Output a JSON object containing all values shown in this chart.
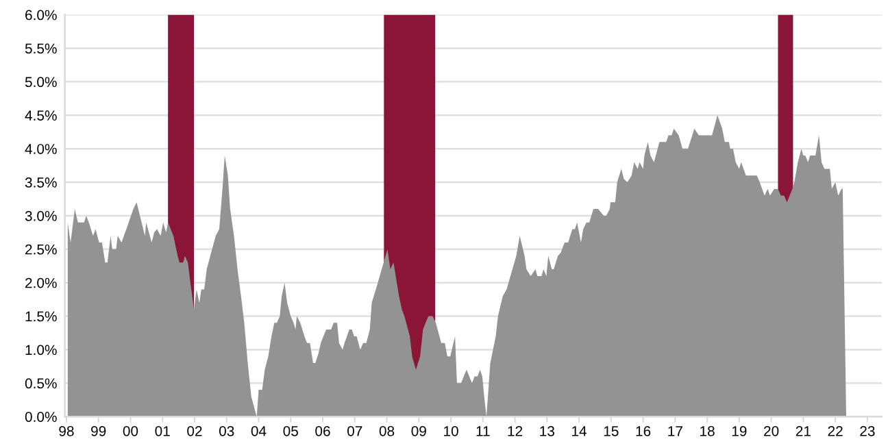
{
  "chart_data": {
    "type": "area",
    "x": [
      1998.04,
      1998.13,
      1998.26,
      1998.36,
      1998.55,
      1998.62,
      1998.7,
      1998.83,
      1998.91,
      1999.02,
      1999.11,
      1999.21,
      1999.28,
      1999.38,
      1999.43,
      1999.55,
      1999.6,
      1999.72,
      1999.87,
      2000.09,
      2000.19,
      2000.45,
      2000.49,
      2000.66,
      2000.74,
      2000.83,
      2000.94,
      2001.02,
      2001.11,
      2001.17,
      2001.34,
      2001.47,
      2001.53,
      2001.64,
      2001.7,
      2001.79,
      2001.87,
      2001.98,
      2002.06,
      2002.15,
      2002.21,
      2002.3,
      2002.38,
      2002.49,
      2002.66,
      2002.77,
      2002.87,
      2002.94,
      2003.04,
      2003.11,
      2003.23,
      2003.34,
      2003.45,
      2003.55,
      2003.66,
      2003.77,
      2003.94,
      2004.0,
      2004.11,
      2004.19,
      2004.3,
      2004.4,
      2004.49,
      2004.57,
      2004.66,
      2004.72,
      2004.81,
      2004.89,
      2005.0,
      2005.09,
      2005.15,
      2005.19,
      2005.3,
      2005.43,
      2005.51,
      2005.6,
      2005.7,
      2005.77,
      2005.87,
      2005.94,
      2006.02,
      2006.11,
      2006.26,
      2006.34,
      2006.45,
      2006.51,
      2006.62,
      2006.68,
      2006.83,
      2006.91,
      2006.98,
      2007.06,
      2007.17,
      2007.26,
      2007.36,
      2007.47,
      2007.53,
      2007.72,
      2008.02,
      2008.11,
      2008.21,
      2008.38,
      2008.47,
      2008.55,
      2008.72,
      2008.79,
      2008.91,
      2009.04,
      2009.13,
      2009.21,
      2009.3,
      2009.43,
      2009.53,
      2009.7,
      2009.81,
      2009.89,
      2009.98,
      2010.13,
      2010.19,
      2010.32,
      2010.4,
      2010.49,
      2010.66,
      2010.74,
      2010.83,
      2010.91,
      2010.98,
      2011.04,
      2011.11,
      2011.23,
      2011.4,
      2011.47,
      2011.62,
      2011.74,
      2012.04,
      2012.15,
      2012.3,
      2012.36,
      2012.49,
      2012.64,
      2012.7,
      2012.83,
      2012.89,
      2012.98,
      2013.04,
      2013.15,
      2013.21,
      2013.34,
      2013.43,
      2013.55,
      2013.66,
      2013.79,
      2013.87,
      2013.94,
      2014.06,
      2014.13,
      2014.23,
      2014.32,
      2014.45,
      2014.6,
      2014.77,
      2014.85,
      2014.96,
      2014.98,
      2015.13,
      2015.19,
      2015.32,
      2015.4,
      2015.51,
      2015.64,
      2015.72,
      2015.83,
      2015.89,
      2016.0,
      2016.04,
      2016.15,
      2016.23,
      2016.34,
      2016.51,
      2016.72,
      2016.79,
      2016.89,
      2016.96,
      2017.11,
      2017.23,
      2017.4,
      2017.6,
      2017.74,
      2018.15,
      2018.32,
      2018.47,
      2018.55,
      2018.68,
      2018.72,
      2018.81,
      2018.89,
      2019.0,
      2019.06,
      2019.21,
      2019.55,
      2019.64,
      2019.79,
      2019.89,
      2019.96,
      2020.09,
      2020.21,
      2020.3,
      2020.4,
      2020.49,
      2020.66,
      2020.72,
      2020.83,
      2020.94,
      2021.0,
      2021.06,
      2021.15,
      2021.21,
      2021.38,
      2021.49,
      2021.57,
      2021.66,
      2021.83,
      2021.89,
      2022.0,
      2022.09,
      2022.19,
      2022.23,
      2022.34
    ],
    "series": [
      {
        "color": "#939393",
        "values": [
          2.9,
          2.6,
          3.1,
          2.9,
          2.9,
          3.0,
          2.9,
          2.7,
          2.8,
          2.6,
          2.6,
          2.3,
          2.3,
          2.7,
          2.5,
          2.5,
          2.7,
          2.6,
          2.8,
          3.1,
          3.2,
          2.7,
          2.9,
          2.6,
          2.75,
          2.8,
          2.7,
          2.9,
          2.75,
          2.9,
          2.7,
          2.4,
          2.3,
          2.3,
          2.4,
          2.3,
          2.0,
          1.6,
          1.9,
          1.7,
          1.9,
          1.9,
          2.2,
          2.4,
          2.7,
          2.8,
          3.4,
          3.9,
          3.6,
          3.1,
          2.7,
          2.2,
          1.8,
          1.4,
          0.8,
          0.3,
          0.0,
          0.4,
          0.4,
          0.7,
          0.9,
          1.2,
          1.4,
          1.4,
          1.5,
          1.8,
          2.0,
          1.7,
          1.5,
          1.4,
          1.3,
          1.5,
          1.4,
          1.2,
          1.1,
          1.1,
          0.8,
          0.8,
          0.95,
          1.1,
          1.2,
          1.3,
          1.3,
          1.4,
          1.4,
          1.1,
          1.0,
          1.1,
          1.3,
          1.3,
          1.2,
          1.2,
          1.0,
          1.1,
          1.1,
          1.3,
          1.7,
          2.0,
          2.5,
          2.2,
          2.3,
          1.8,
          1.6,
          1.5,
          1.2,
          0.9,
          0.7,
          0.9,
          1.3,
          1.4,
          1.5,
          1.5,
          1.4,
          1.1,
          1.1,
          0.9,
          0.9,
          1.2,
          0.5,
          0.5,
          0.6,
          0.7,
          0.5,
          0.6,
          0.6,
          0.7,
          0.6,
          0.3,
          0.0,
          0.8,
          1.2,
          1.5,
          1.8,
          1.9,
          2.4,
          2.7,
          2.4,
          2.2,
          2.1,
          2.2,
          2.1,
          2.1,
          2.2,
          2.1,
          2.4,
          2.2,
          2.2,
          2.4,
          2.45,
          2.6,
          2.6,
          2.8,
          2.8,
          2.9,
          2.6,
          2.8,
          2.9,
          2.9,
          3.1,
          3.1,
          3.0,
          3.0,
          3.1,
          3.2,
          3.2,
          3.5,
          3.7,
          3.55,
          3.5,
          3.6,
          3.8,
          3.7,
          3.8,
          3.7,
          3.9,
          4.1,
          3.9,
          3.8,
          4.1,
          4.1,
          4.2,
          4.2,
          4.3,
          4.2,
          4.0,
          4.0,
          4.3,
          4.2,
          4.2,
          4.5,
          4.3,
          4.1,
          4.1,
          4.0,
          4.0,
          3.8,
          3.7,
          3.8,
          3.6,
          3.6,
          3.5,
          3.3,
          3.4,
          3.3,
          3.4,
          3.4,
          3.3,
          3.3,
          3.2,
          3.4,
          3.5,
          3.8,
          4.0,
          3.9,
          3.9,
          3.8,
          3.9,
          3.9,
          4.2,
          3.8,
          3.7,
          3.7,
          3.4,
          3.5,
          3.3,
          3.4,
          3.4,
          0.0
        ]
      }
    ],
    "bands": [
      {
        "axis": "x",
        "from": 2001.17,
        "to": 2001.98,
        "color": "#8b1538"
      },
      {
        "axis": "x",
        "from": 2007.91,
        "to": 2009.51,
        "color": "#8b1538"
      },
      {
        "axis": "x",
        "from": 2020.21,
        "to": 2020.68,
        "color": "#8b1538"
      }
    ],
    "xlim": [
      1997.95,
      2023.45
    ],
    "xticks": [
      {
        "value": 1998,
        "label": "98"
      },
      {
        "value": 1999,
        "label": "99"
      },
      {
        "value": 2000,
        "label": "00"
      },
      {
        "value": 2001,
        "label": "01"
      },
      {
        "value": 2002,
        "label": "02"
      },
      {
        "value": 2003,
        "label": "03"
      },
      {
        "value": 2004,
        "label": "04"
      },
      {
        "value": 2005,
        "label": "05"
      },
      {
        "value": 2006,
        "label": "06"
      },
      {
        "value": 2007,
        "label": "07"
      },
      {
        "value": 2008,
        "label": "08"
      },
      {
        "value": 2009,
        "label": "09"
      },
      {
        "value": 2010,
        "label": "10"
      },
      {
        "value": 2011,
        "label": "11"
      },
      {
        "value": 2012,
        "label": "12"
      },
      {
        "value": 2013,
        "label": "13"
      },
      {
        "value": 2014,
        "label": "14"
      },
      {
        "value": 2015,
        "label": "15"
      },
      {
        "value": 2016,
        "label": "16"
      },
      {
        "value": 2017,
        "label": "17"
      },
      {
        "value": 2018,
        "label": "18"
      },
      {
        "value": 2019,
        "label": "19"
      },
      {
        "value": 2020,
        "label": "20"
      },
      {
        "value": 2021,
        "label": "21"
      },
      {
        "value": 2022,
        "label": "22"
      },
      {
        "value": 2023,
        "label": "23"
      }
    ],
    "ylim": [
      0,
      6
    ],
    "yticks": [
      {
        "value": 0,
        "label": "0.0%"
      },
      {
        "value": 0.5,
        "label": "0.5%"
      },
      {
        "value": 1,
        "label": "1.0%"
      },
      {
        "value": 1.5,
        "label": "1.5%"
      },
      {
        "value": 2,
        "label": "2.0%"
      },
      {
        "value": 2.5,
        "label": "2.5%"
      },
      {
        "value": 3,
        "label": "3.0%"
      },
      {
        "value": 3.5,
        "label": "3.5%"
      },
      {
        "value": 4,
        "label": "4.0%"
      },
      {
        "value": 4.5,
        "label": "4.5%"
      },
      {
        "value": 5,
        "label": "5.0%"
      },
      {
        "value": 5.5,
        "label": "5.5%"
      },
      {
        "value": 6,
        "label": "6.0%"
      }
    ],
    "grid": "y"
  }
}
